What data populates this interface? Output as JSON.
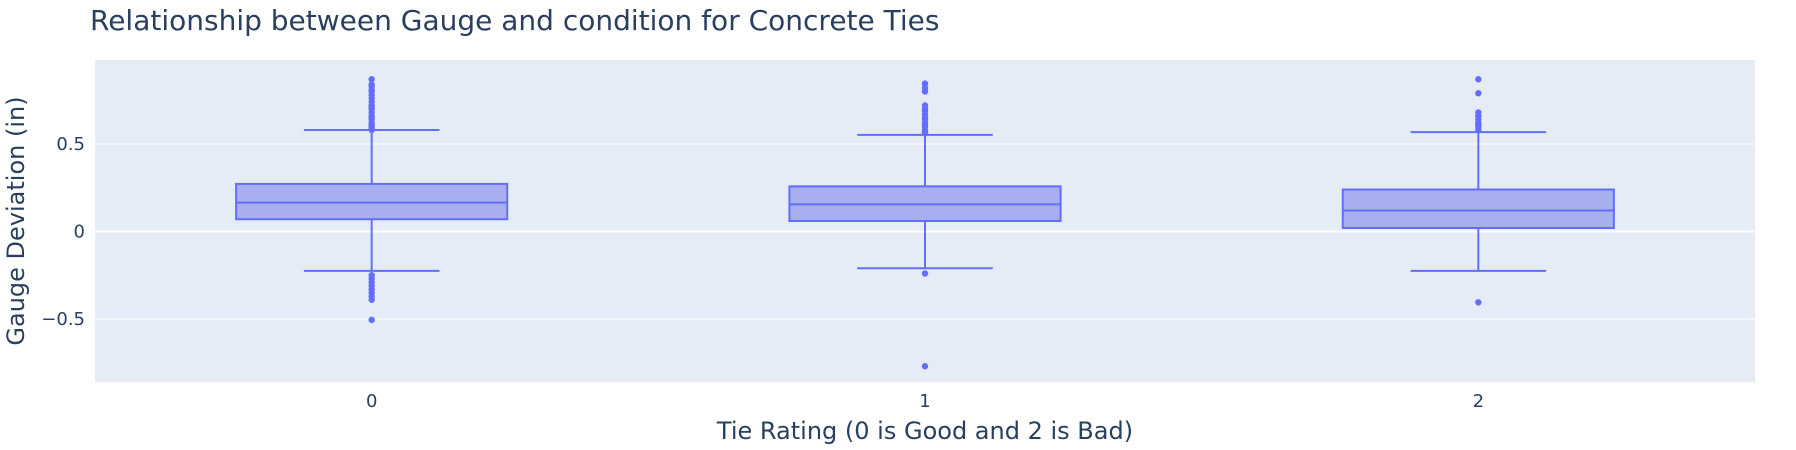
{
  "chart_data": {
    "type": "box",
    "title": "Relationship between Gauge and condition for Concrete Ties",
    "xlabel": "Tie Rating (0 is Good and 2 is Bad)",
    "ylabel": "Gauge Deviation (in)",
    "categories": [
      "0",
      "1",
      "2"
    ],
    "ylim": [
      -0.86,
      0.98
    ],
    "yticks": [
      {
        "value": -0.5,
        "label": "−0.5"
      },
      {
        "value": 0,
        "label": "0"
      },
      {
        "value": 0.5,
        "label": "0.5"
      }
    ],
    "grid": true,
    "legend": "none",
    "colors": {
      "plot_bg": "#e5ecf6",
      "grid": "#ffffff",
      "box_fill": "#a7afef",
      "box_line": "#636efa",
      "text": "#2a3f5f"
    },
    "boxes": [
      {
        "category": "0",
        "q1": 0.07,
        "median": 0.165,
        "q3": 0.272,
        "lower_fence": -0.225,
        "upper_fence": 0.58,
        "outliers": [
          0.87,
          0.84,
          0.83,
          0.81,
          0.8,
          0.78,
          0.76,
          0.74,
          0.72,
          0.71,
          0.7,
          0.68,
          0.66,
          0.65,
          0.64,
          0.62,
          0.61,
          0.6,
          0.59,
          0.58,
          -0.25,
          -0.27,
          -0.29,
          -0.31,
          -0.33,
          -0.35,
          -0.37,
          -0.39,
          -0.505
        ]
      },
      {
        "category": "1",
        "q1": 0.06,
        "median": 0.155,
        "q3": 0.258,
        "lower_fence": -0.21,
        "upper_fence": 0.552,
        "outliers": [
          0.845,
          0.82,
          0.8,
          0.72,
          0.7,
          0.69,
          0.67,
          0.65,
          0.64,
          0.62,
          0.61,
          0.6,
          0.58,
          0.57,
          0.56,
          -0.24,
          -0.77
        ]
      },
      {
        "category": "2",
        "q1": 0.02,
        "median": 0.12,
        "q3": 0.24,
        "lower_fence": -0.225,
        "upper_fence": 0.568,
        "outliers": [
          0.87,
          0.79,
          0.68,
          0.66,
          0.64,
          0.62,
          0.61,
          0.6,
          0.58,
          -0.405
        ]
      }
    ]
  }
}
